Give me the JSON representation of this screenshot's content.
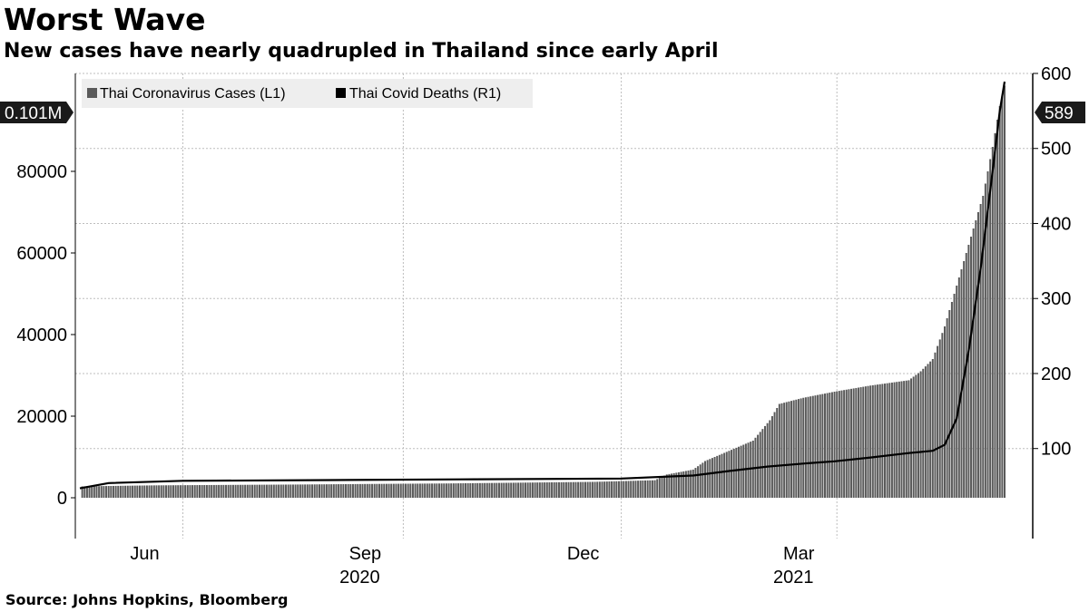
{
  "title": "Worst Wave",
  "subtitle": "New cases have nearly quadrupled in Thailand since early April",
  "source": "Source: Johns Hopkins, Bloomberg",
  "colors": {
    "bars": "#5a5a5a",
    "line": "#000000",
    "grid": "#bdbdbd",
    "legend_bg": "#eeeeee"
  },
  "chart_data": {
    "type": "bar",
    "x_range": [
      "2020-04-19",
      "2021-05-10"
    ],
    "x_ticks": [
      {
        "date": "2020-06-01",
        "label": "Jun"
      },
      {
        "date": "2020-09-01",
        "label": "Sep"
      },
      {
        "date": "2020-12-01",
        "label": "Dec"
      },
      {
        "date": "2021-03-01",
        "label": "Mar"
      }
    ],
    "x_year_labels": [
      {
        "date": "2020-09-01",
        "label": "2020"
      },
      {
        "date": "2021-03-01",
        "label": "2021"
      }
    ],
    "y_left": {
      "range": [
        -10000,
        104000
      ],
      "ticks": [
        0,
        20000,
        40000,
        60000,
        80000
      ]
    },
    "y_right": {
      "range": [
        -20,
        600
      ],
      "ticks": [
        100,
        200,
        300,
        400,
        500,
        600
      ]
    },
    "legend": {
      "placement": "top-left"
    },
    "series": [
      {
        "name": "Thai Coronavirus Cases  (L1)",
        "axis": "left",
        "render": "bar",
        "points": [
          [
            "2020-04-20",
            2792
          ],
          [
            "2020-05-20",
            3037
          ],
          [
            "2020-06-20",
            3148
          ],
          [
            "2020-07-20",
            3250
          ],
          [
            "2020-08-20",
            3390
          ],
          [
            "2020-09-20",
            3510
          ],
          [
            "2020-10-20",
            3700
          ],
          [
            "2020-11-20",
            3900
          ],
          [
            "2020-12-15",
            4300
          ],
          [
            "2020-12-20",
            5700
          ],
          [
            "2020-12-31",
            6900
          ],
          [
            "2021-01-05",
            9000
          ],
          [
            "2021-01-15",
            11500
          ],
          [
            "2021-01-25",
            14000
          ],
          [
            "2021-02-01",
            19000
          ],
          [
            "2021-02-05",
            23000
          ],
          [
            "2021-02-15",
            24500
          ],
          [
            "2021-02-28",
            26000
          ],
          [
            "2021-03-15",
            27500
          ],
          [
            "2021-03-31",
            28800
          ],
          [
            "2021-04-05",
            31000
          ],
          [
            "2021-04-10",
            34000
          ],
          [
            "2021-04-15",
            42000
          ],
          [
            "2021-04-20",
            52000
          ],
          [
            "2021-04-25",
            62000
          ],
          [
            "2021-05-01",
            74000
          ],
          [
            "2021-05-05",
            86000
          ],
          [
            "2021-05-08",
            96000
          ],
          [
            "2021-05-10",
            101000
          ]
        ]
      },
      {
        "name": "Thai Covid Deaths (R1)",
        "axis": "right",
        "render": "line",
        "points": [
          [
            "2020-04-19",
            47
          ],
          [
            "2020-05-01",
            54
          ],
          [
            "2020-06-01",
            57
          ],
          [
            "2020-08-01",
            58
          ],
          [
            "2020-10-01",
            59
          ],
          [
            "2020-12-01",
            60
          ],
          [
            "2020-12-31",
            64
          ],
          [
            "2021-01-15",
            70
          ],
          [
            "2021-01-31",
            76
          ],
          [
            "2021-02-15",
            80
          ],
          [
            "2021-02-28",
            83
          ],
          [
            "2021-03-15",
            88
          ],
          [
            "2021-03-31",
            94
          ],
          [
            "2021-04-10",
            97
          ],
          [
            "2021-04-15",
            105
          ],
          [
            "2021-04-20",
            140
          ],
          [
            "2021-04-25",
            230
          ],
          [
            "2021-04-30",
            340
          ],
          [
            "2021-05-05",
            470
          ],
          [
            "2021-05-08",
            550
          ],
          [
            "2021-05-10",
            589
          ]
        ]
      }
    ],
    "last_value_tags": [
      {
        "axis": "left",
        "label": "0.101M"
      },
      {
        "axis": "right",
        "label": "589"
      }
    ]
  }
}
